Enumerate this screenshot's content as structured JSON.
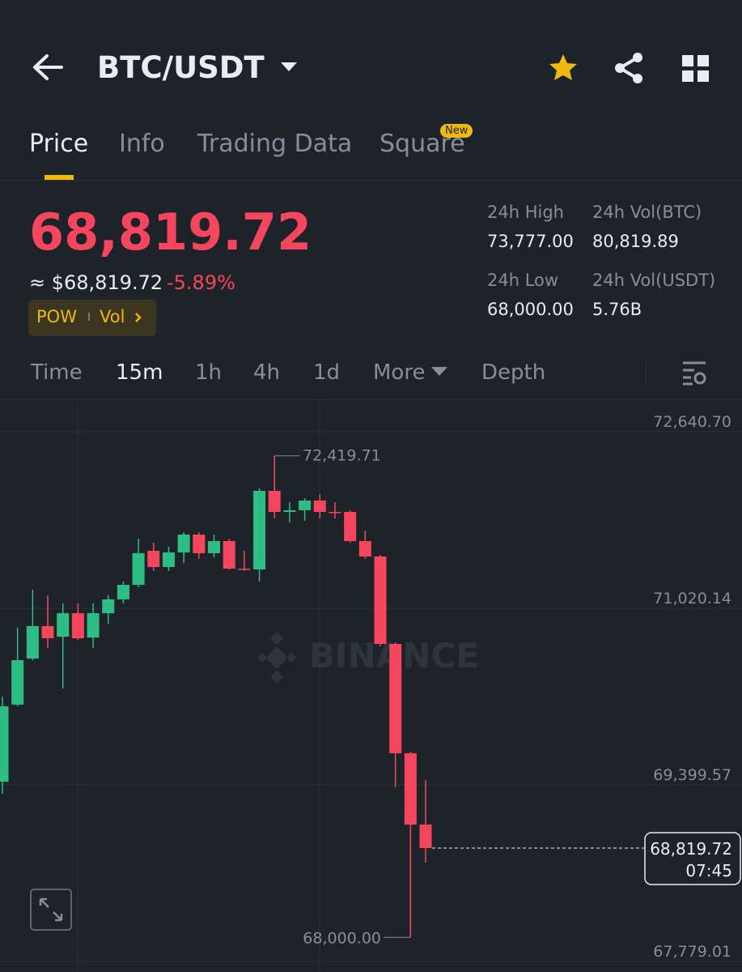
{
  "header": {
    "pair": "BTC/USDT"
  },
  "tabs": [
    "Price",
    "Info",
    "Trading Data",
    "Square"
  ],
  "new_badge": "New",
  "ticker": {
    "price": "68,819.72",
    "usd": "≈ $68,819.72",
    "change": "-5.89%",
    "tags": [
      "POW",
      "Vol"
    ],
    "stats": [
      {
        "label": "24h High",
        "value": "73,777.00"
      },
      {
        "label": "24h Vol(BTC)",
        "value": "80,819.89"
      },
      {
        "label": "24h Low",
        "value": "68,000.00"
      },
      {
        "label": "24h Vol(USDT)",
        "value": "5.76B"
      }
    ]
  },
  "intervals": [
    "Time",
    "15m",
    "1h",
    "4h",
    "1d",
    "More",
    "Depth"
  ],
  "chart_data": {
    "type": "candlestick",
    "open": [
      69429,
      70136,
      70559,
      70857,
      70760,
      70975,
      70752,
      70975,
      71102,
      71236,
      71548,
      71399,
      71533,
      71697,
      71526,
      71637,
      71384,
      71377,
      72098,
      71905,
      71920,
      72009,
      71905,
      71905,
      71637,
      71496,
      70693,
      69690,
      69035
    ],
    "high": [
      70210,
      70842,
      71191,
      71139,
      71065,
      71065,
      71065,
      71139,
      71265,
      71659,
      71622,
      71585,
      71719,
      71719,
      71697,
      71659,
      71548,
      72120,
      72419.71,
      71994,
      72031,
      72068,
      71994,
      71920,
      71734,
      71511,
      70708,
      69704,
      69444
    ],
    "low": [
      69318,
      70121,
      70544,
      70656,
      70284,
      70730,
      70656,
      70879,
      71065,
      71213,
      71362,
      71362,
      71436,
      71474,
      71488,
      71377,
      71362,
      71265,
      71845,
      71808,
      71823,
      71845,
      71845,
      71622,
      71474,
      70671,
      69377,
      68000,
      68686
    ],
    "close": [
      70121,
      70544,
      70857,
      70745,
      70975,
      70745,
      70975,
      71102,
      71236,
      71526,
      71399,
      71533,
      71697,
      71526,
      71637,
      71384,
      71377,
      72098,
      71905,
      71920,
      72009,
      71905,
      71897,
      71637,
      71496,
      70693,
      69690,
      69035,
      68819.72
    ],
    "up_color": "#2ebd85",
    "down_color": "#f6465d",
    "ylim": [
      67682.4,
      72923.2
    ],
    "yticks": [
      {
        "value": 72640.7,
        "label": "72,640.70"
      },
      {
        "value": 71020.14,
        "label": "71,020.14"
      },
      {
        "value": 69399.57,
        "label": "69,399.57"
      },
      {
        "value": 67779.01,
        "label": "67,779.01"
      }
    ],
    "grid": true,
    "high_label": {
      "value": 72419.71,
      "label": "72,419.71"
    },
    "low_label": {
      "value": 68000.0,
      "label": "68,000.00"
    },
    "last_price": {
      "value": 68819.72,
      "label": "68,819.72"
    },
    "countdown": "07:45",
    "watermark": "BINANCE"
  }
}
